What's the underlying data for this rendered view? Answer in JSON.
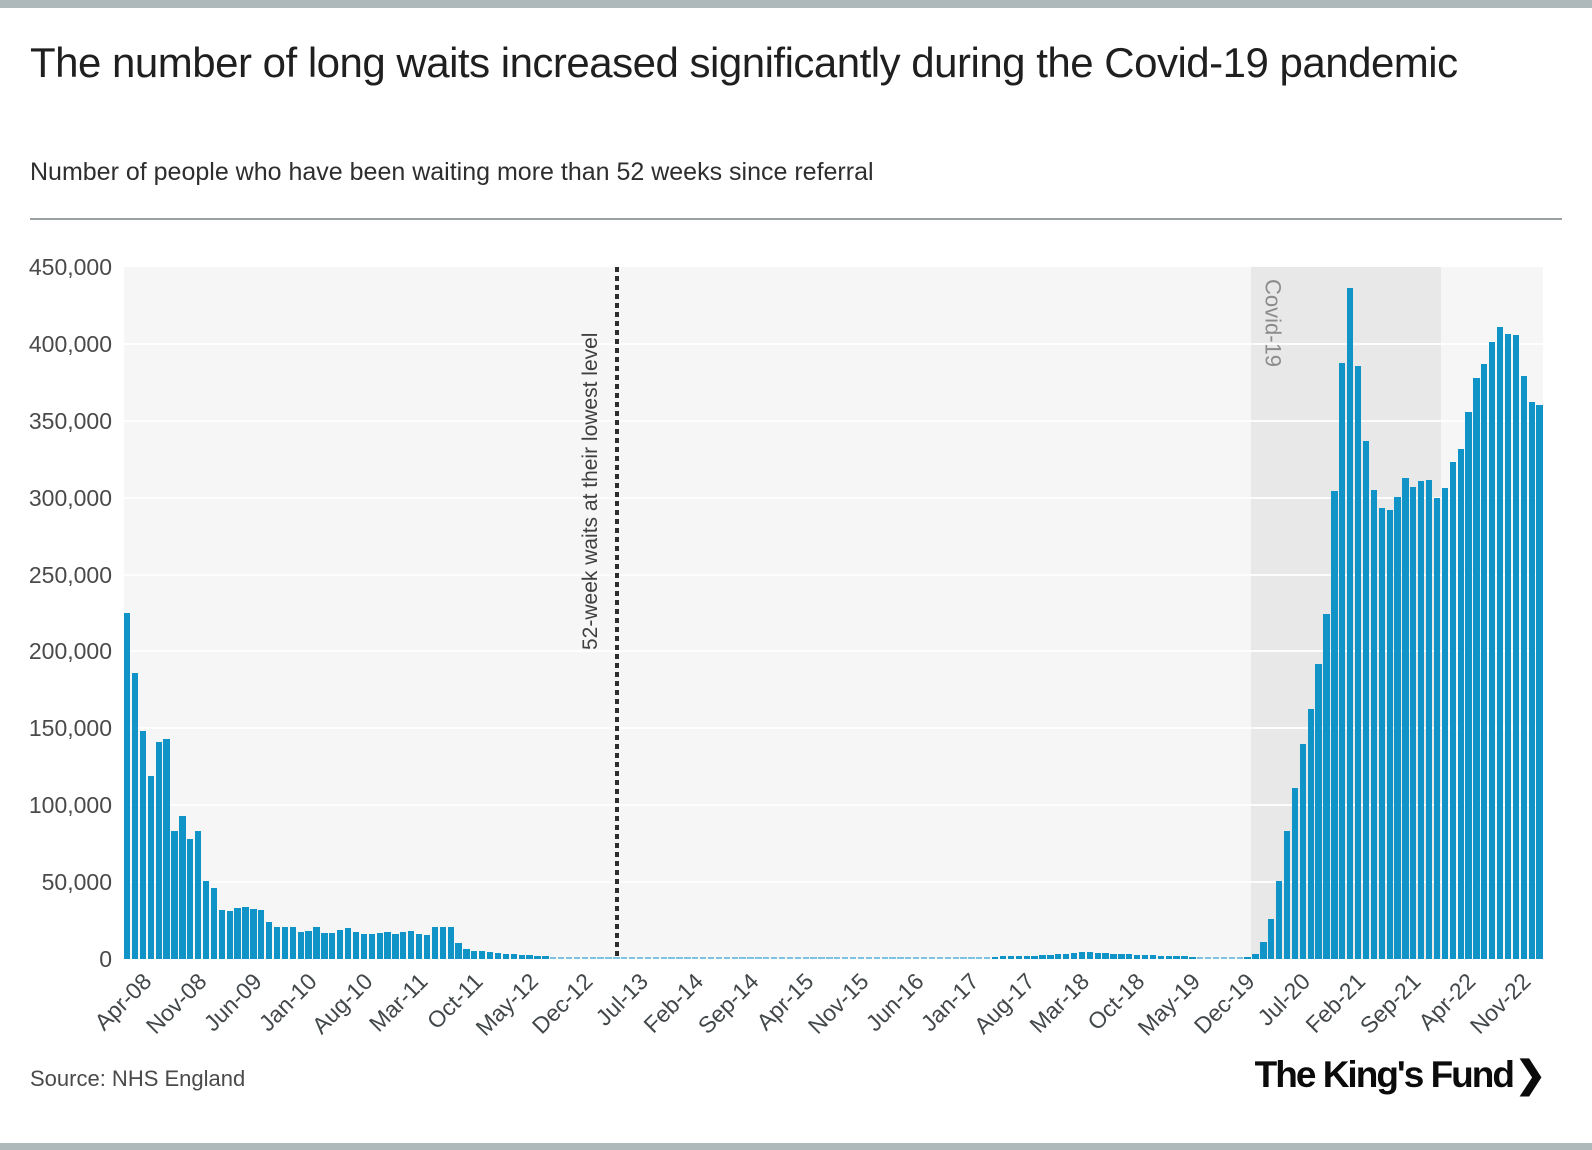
{
  "header": {
    "title": "The number of long waits increased significantly during the Covid-19 pandemic",
    "subtitle": "Number of people who have been waiting more than 52 weeks since referral"
  },
  "footer": {
    "source": "Source: NHS England",
    "logo_text": "The King's Fund",
    "logo_chevron": "❯"
  },
  "colors": {
    "bar": "#1093c6",
    "bar_faint": "#7ec3e3",
    "plot_bg": "#f6f6f6",
    "covid_band_bg": "#e8e8e8",
    "frame_bars": "#aeb9bc",
    "dotted_line": "#2e2e2e"
  },
  "chart_data": {
    "type": "bar",
    "title": "Number of people who have been waiting more than 52 weeks since referral",
    "xlabel": "",
    "ylabel": "",
    "ylim": [
      0,
      450000
    ],
    "grid": true,
    "y_tick_labels": [
      "450,000",
      "400,000",
      "350,000",
      "300,000",
      "250,000",
      "200,000",
      "150,000",
      "100,000",
      "50,000",
      "0"
    ],
    "x_tick_step": 7,
    "x_tick_labels": [
      "Apr-08",
      "Nov-08",
      "Jun-09",
      "Jan-10",
      "Aug-10",
      "Mar-11",
      "Oct-11",
      "May-12",
      "Dec-12",
      "Jul-13",
      "Feb-14",
      "Sep-14",
      "Apr-15",
      "Nov-15",
      "Jun-16",
      "Jan-17",
      "Aug-17",
      "Mar-18",
      "Oct-18",
      "May-19",
      "Dec-19",
      "Jul-20",
      "Feb-21",
      "Sep-21",
      "Apr-22",
      "Nov-22"
    ],
    "months": [
      "Apr-08",
      "May-08",
      "Jun-08",
      "Jul-08",
      "Aug-08",
      "Sep-08",
      "Oct-08",
      "Nov-08",
      "Dec-08",
      "Jan-09",
      "Feb-09",
      "Mar-09",
      "Apr-09",
      "May-09",
      "Jun-09",
      "Jul-09",
      "Aug-09",
      "Sep-09",
      "Oct-09",
      "Nov-09",
      "Dec-09",
      "Jan-10",
      "Feb-10",
      "Mar-10",
      "Apr-10",
      "May-10",
      "Jun-10",
      "Jul-10",
      "Aug-10",
      "Sep-10",
      "Oct-10",
      "Nov-10",
      "Dec-10",
      "Jan-11",
      "Feb-11",
      "Mar-11",
      "Apr-11",
      "May-11",
      "Jun-11",
      "Jul-11",
      "Aug-11",
      "Sep-11",
      "Oct-11",
      "Nov-11",
      "Dec-11",
      "Jan-12",
      "Feb-12",
      "Mar-12",
      "Apr-12",
      "May-12",
      "Jun-12",
      "Jul-12",
      "Aug-12",
      "Sep-12",
      "Oct-12",
      "Nov-12",
      "Dec-12",
      "Jan-13",
      "Feb-13",
      "Mar-13",
      "Apr-13",
      "May-13",
      "Jun-13",
      "Jul-13",
      "Aug-13",
      "Sep-13",
      "Oct-13",
      "Nov-13",
      "Dec-13",
      "Jan-14",
      "Feb-14",
      "Mar-14",
      "Apr-14",
      "May-14",
      "Jun-14",
      "Jul-14",
      "Aug-14",
      "Sep-14",
      "Oct-14",
      "Nov-14",
      "Dec-14",
      "Jan-15",
      "Feb-15",
      "Mar-15",
      "Apr-15",
      "May-15",
      "Jun-15",
      "Jul-15",
      "Aug-15",
      "Sep-15",
      "Oct-15",
      "Nov-15",
      "Dec-15",
      "Jan-16",
      "Feb-16",
      "Mar-16",
      "Apr-16",
      "May-16",
      "Jun-16",
      "Jul-16",
      "Aug-16",
      "Sep-16",
      "Oct-16",
      "Nov-16",
      "Dec-16",
      "Jan-17",
      "Feb-17",
      "Mar-17",
      "Apr-17",
      "May-17",
      "Jun-17",
      "Jul-17",
      "Aug-17",
      "Sep-17",
      "Oct-17",
      "Nov-17",
      "Dec-17",
      "Jan-18",
      "Feb-18",
      "Mar-18",
      "Apr-18",
      "May-18",
      "Jun-18",
      "Jul-18",
      "Aug-18",
      "Sep-18",
      "Oct-18",
      "Nov-18",
      "Dec-18",
      "Jan-19",
      "Feb-19",
      "Mar-19",
      "Apr-19",
      "May-19",
      "Jun-19",
      "Jul-19",
      "Aug-19",
      "Sep-19",
      "Oct-19",
      "Nov-19",
      "Dec-19",
      "Jan-20",
      "Feb-20",
      "Mar-20",
      "Apr-20",
      "May-20",
      "Jun-20",
      "Jul-20",
      "Aug-20",
      "Sep-20",
      "Oct-20",
      "Nov-20",
      "Dec-20",
      "Jan-21",
      "Feb-21",
      "Mar-21",
      "Apr-21",
      "May-21",
      "Jun-21",
      "Jul-21",
      "Aug-21",
      "Sep-21",
      "Oct-21",
      "Nov-21",
      "Dec-21",
      "Jan-22",
      "Feb-22",
      "Mar-22",
      "Apr-22",
      "May-22",
      "Jun-22",
      "Jul-22",
      "Aug-22",
      "Sep-22",
      "Oct-22",
      "Nov-22",
      "Dec-22",
      "Jan-23",
      "Feb-23",
      "Mar-23"
    ],
    "values": [
      225000,
      186000,
      148000,
      119000,
      141000,
      143000,
      83000,
      93000,
      78000,
      83000,
      51000,
      46000,
      32000,
      31000,
      33000,
      34000,
      32500,
      32000,
      24000,
      21000,
      20500,
      21000,
      17500,
      18500,
      20500,
      17000,
      17000,
      19000,
      20000,
      17500,
      16000,
      16500,
      17000,
      17500,
      16500,
      17500,
      18000,
      16500,
      15500,
      20500,
      21000,
      20500,
      10500,
      6500,
      5500,
      5000,
      4500,
      4000,
      3500,
      3000,
      2600,
      2300,
      2000,
      1800,
      1500,
      1300,
      1200,
      1000,
      900,
      800,
      700,
      600,
      550,
      500,
      550,
      600,
      650,
      650,
      700,
      700,
      700,
      700,
      750,
      800,
      800,
      800,
      850,
      850,
      800,
      800,
      850,
      850,
      900,
      900,
      950,
      950,
      950,
      1000,
      1000,
      1000,
      1050,
      1050,
      1100,
      1100,
      1150,
      1150,
      1200,
      1250,
      1300,
      1350,
      1400,
      1400,
      1400,
      1450,
      1500,
      1500,
      1500,
      1300,
      1400,
      1500,
      1600,
      1700,
      1800,
      1900,
      2000,
      2200,
      2500,
      2800,
      3000,
      3500,
      4100,
      4300,
      4500,
      4100,
      3800,
      3500,
      3200,
      3000,
      2800,
      2600,
      2400,
      2200,
      2000,
      1800,
      1700,
      1600,
      1500,
      1400,
      1300,
      1300,
      1300,
      1467,
      1613,
      3097,
      11042,
      26029,
      50536,
      83203,
      111026,
      139545,
      162888,
      192169,
      224205,
      304044,
      387885,
      436127,
      385490,
      336733,
      304803,
      293102,
      292138,
      300566,
      312665,
      306996,
      310813,
      311528,
      299478,
      306286,
      323093,
      331623,
      355774,
      377689,
      387257,
      401537,
      410983,
      406575,
      406035,
      379245,
      362498,
      360260
    ],
    "annotations": {
      "lowest_level_line": {
        "label": "52-week waits at their lowest level",
        "style": "dotted-vertical",
        "position_month": "Jun-13",
        "month_index": 62.5
      },
      "covid_band": {
        "label": "Covid-19",
        "start_month": "Mar-20",
        "end_month": "Feb-22",
        "start_index": 143,
        "end_index": 167
      }
    }
  }
}
